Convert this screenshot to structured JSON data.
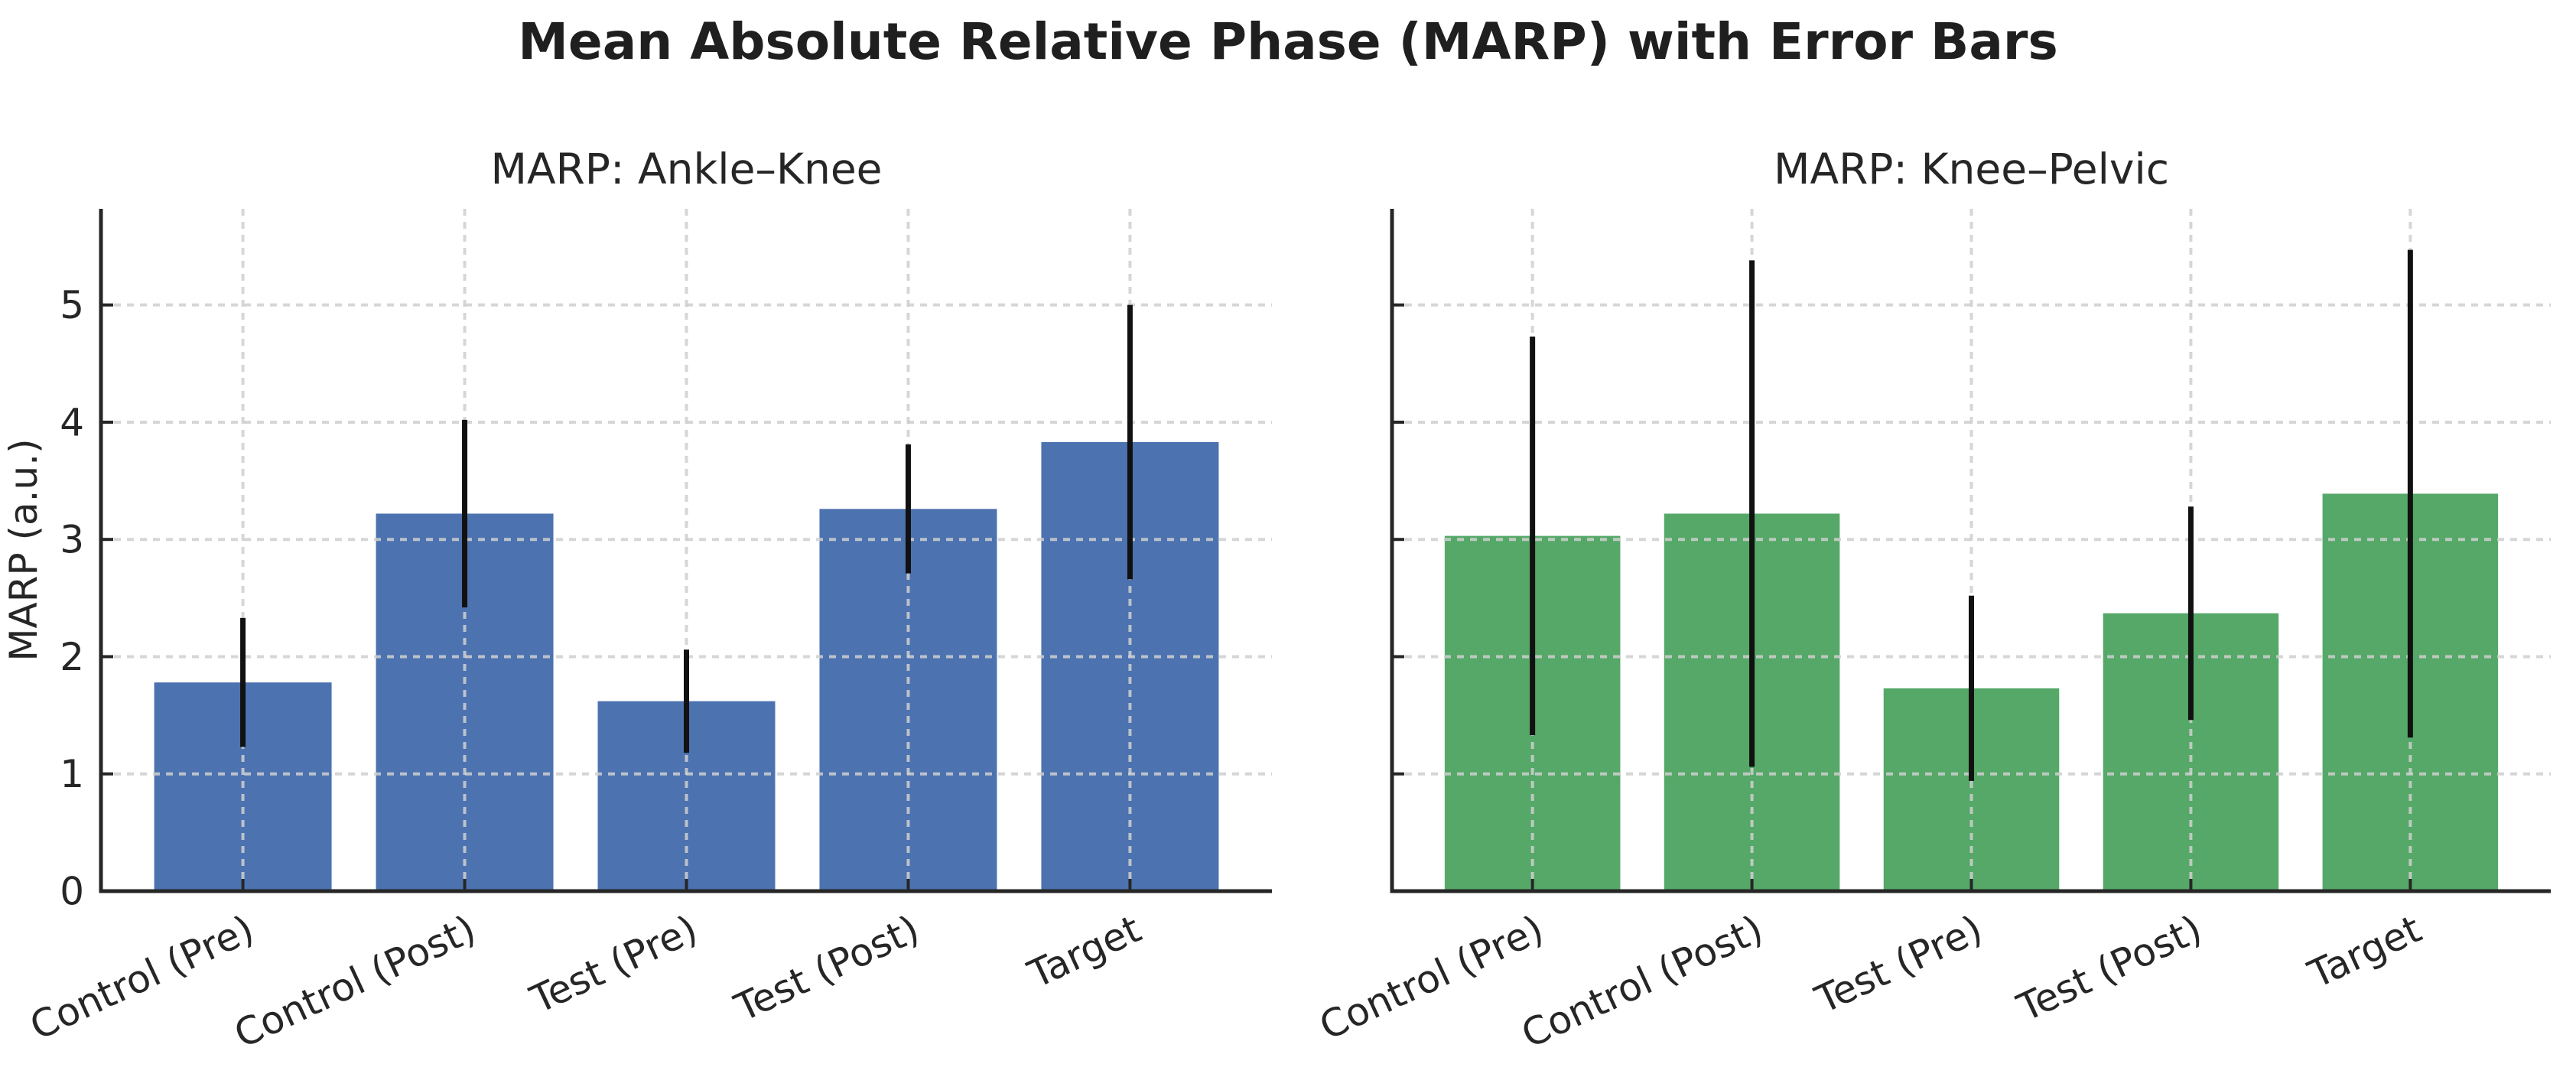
{
  "figure": {
    "suptitle": "Mean Absolute Relative Phase (MARP) with Error Bars",
    "background": "#ffffff",
    "text_color": "#262626"
  },
  "chart_data": [
    {
      "type": "bar",
      "title": "MARP: Ankle–Knee",
      "ylabel": "MARP (a.u.)",
      "categories": [
        "Control (Pre)",
        "Control (Post)",
        "Test (Pre)",
        "Test (Post)",
        "Target"
      ],
      "values": [
        1.78,
        3.22,
        1.62,
        3.26,
        3.83
      ],
      "errors": [
        0.55,
        0.8,
        0.44,
        0.55,
        1.17
      ],
      "bar_color": "#4C72B0",
      "error_color": "#111111",
      "ylim": [
        0,
        5.82
      ],
      "yticks": [
        0,
        1,
        2,
        3,
        4,
        5
      ],
      "show_ytick_labels": true,
      "grid": true,
      "grid_style": "dashed",
      "xtick_rotation": 25,
      "legend": "none"
    },
    {
      "type": "bar",
      "title": "MARP: Knee–Pelvic",
      "ylabel": "",
      "categories": [
        "Control (Pre)",
        "Control (Post)",
        "Test (Pre)",
        "Test (Post)",
        "Target"
      ],
      "values": [
        3.03,
        3.22,
        1.73,
        2.37,
        3.39
      ],
      "errors": [
        1.7,
        2.16,
        0.79,
        0.91,
        2.08
      ],
      "bar_color": "#55A868",
      "error_color": "#111111",
      "ylim": [
        0,
        5.82
      ],
      "yticks": [
        0,
        1,
        2,
        3,
        4,
        5
      ],
      "show_ytick_labels": false,
      "grid": true,
      "grid_style": "dashed",
      "xtick_rotation": 25,
      "legend": "none"
    }
  ]
}
